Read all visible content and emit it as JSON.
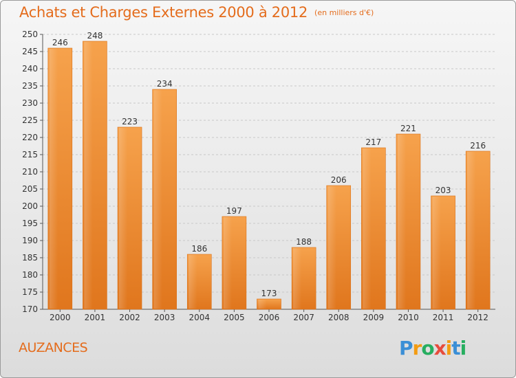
{
  "header": {
    "title": "Achats et Charges Externes 2000 à 2012",
    "unit": "(en milliers d'€)"
  },
  "location": "AUZANCES",
  "logo": {
    "letters": [
      "P",
      "r",
      "o",
      "x",
      "i",
      "t",
      "i"
    ],
    "colors": [
      "#3b8fd6",
      "#f39c12",
      "#27ae60",
      "#e74c3c",
      "#f39c12",
      "#3b8fd6",
      "#27ae60"
    ]
  },
  "chart_data": {
    "type": "bar",
    "title": "Achats et Charges Externes 2000 à 2012",
    "subtitle": "(en milliers d'€)",
    "categories": [
      "2000",
      "2001",
      "2002",
      "2003",
      "2004",
      "2005",
      "2006",
      "2007",
      "2008",
      "2009",
      "2010",
      "2011",
      "2012"
    ],
    "values": [
      246,
      248,
      223,
      234,
      186,
      197,
      173,
      188,
      206,
      217,
      221,
      203,
      216
    ],
    "ylim": [
      170,
      250
    ],
    "yticks": [
      170,
      175,
      180,
      185,
      190,
      195,
      200,
      205,
      210,
      215,
      220,
      225,
      230,
      235,
      240,
      245,
      250
    ],
    "grid": true,
    "bar_color": "#f0892d"
  }
}
